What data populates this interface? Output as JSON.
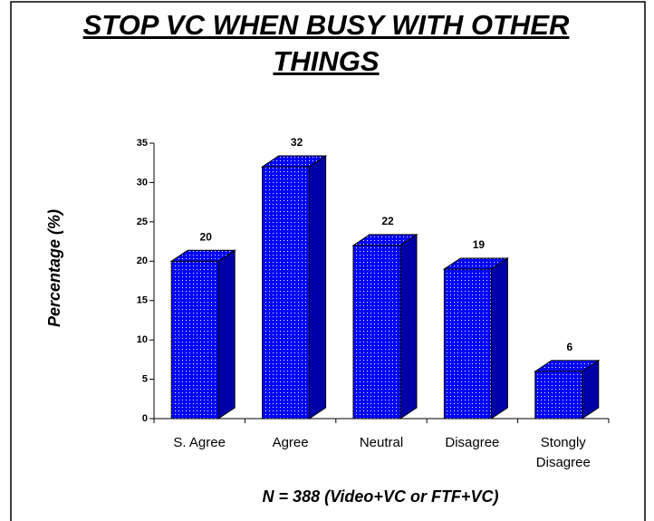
{
  "chart_data": {
    "type": "bar3d",
    "title": "STOP VC WHEN BUSY WITH OTHER THINGS",
    "y_label": "Percentage (%)",
    "x_label": "N = 388 (Video+VC or FTF+VC)",
    "categories": [
      "S. Agree",
      "Agree",
      "Neutral",
      "Disagree",
      "Stongly Disagree"
    ],
    "values": [
      20,
      32,
      22,
      19,
      6
    ],
    "color": "#0000ff",
    "side_color": "#0000a8",
    "ylim": [
      0,
      35
    ],
    "yticks": [
      0,
      5,
      10,
      15,
      20,
      25,
      30,
      35
    ],
    "grid": false
  }
}
